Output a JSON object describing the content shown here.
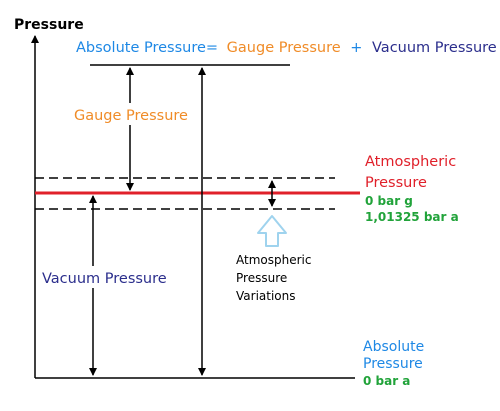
{
  "axis": {
    "y_label": "Pressure"
  },
  "equation": {
    "lhs": "Absolute Pressure=",
    "term1": "Gauge Pressure",
    "plus": "+",
    "term2": "Vacuum Pressure"
  },
  "labels": {
    "gauge_pressure": "Gauge Pressure",
    "vacuum_pressure": "Vacuum Pressure",
    "atmospheric_line1": "Atmospheric",
    "atmospheric_line2": "Pressure",
    "atmospheric_bar_g": "0 bar g",
    "atmospheric_bar_a": "1,01325 bar a",
    "variations_line1": "Atmospheric",
    "variations_line2": "Pressure",
    "variations_line3": "Variations",
    "absolute_line1": "Absolute",
    "absolute_line2": "Pressure",
    "absolute_bar_a": "0 bar a"
  },
  "colors": {
    "absolute_blue": "#1e88e5",
    "gauge_orange": "#f08c28",
    "vacuum_navy": "#2b2e8c",
    "atmospheric_red": "#e0202a",
    "value_green": "#21a33a",
    "variation_arrow": "#9fd3ee",
    "ink": "#000000"
  }
}
